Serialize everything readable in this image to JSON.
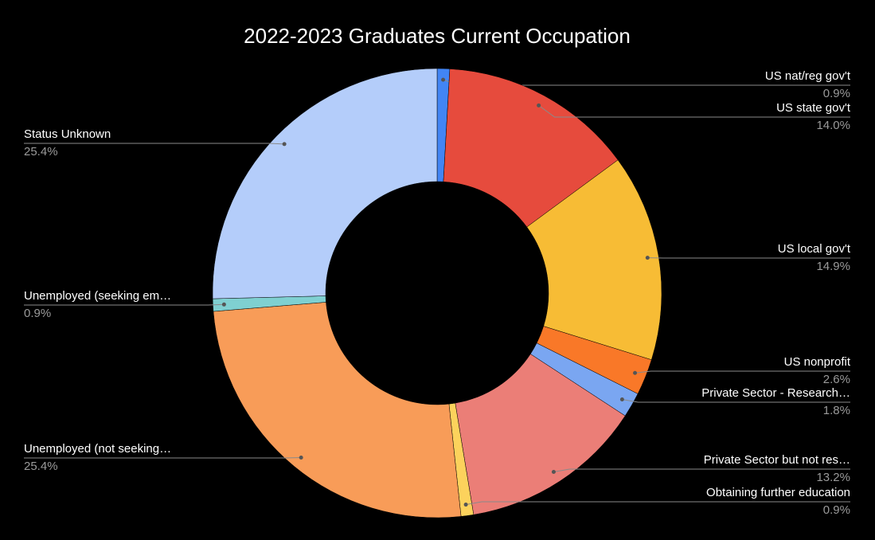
{
  "chart_data": {
    "type": "donut",
    "title": "2022-2023 Graduates Current Occupation",
    "categories": [
      "US nat/reg gov't",
      "US state gov't",
      "US local gov't",
      "US nonprofit",
      "Private Sector - Research…",
      "Private Sector but not res…",
      "Obtaining further education",
      "Unemployed (not seeking…",
      "Unemployed (seeking em…",
      "Status Unknown"
    ],
    "values": [
      0.9,
      14.0,
      14.9,
      2.6,
      1.8,
      13.2,
      0.9,
      25.4,
      0.9,
      25.4
    ],
    "value_labels": [
      "0.9%",
      "14.0%",
      "14.9%",
      "2.6%",
      "1.8%",
      "13.2%",
      "0.9%",
      "25.4%",
      "0.9%",
      "25.4%"
    ],
    "colors": [
      "#4285f4",
      "#e64b3d",
      "#f7bc35",
      "#f97828",
      "#7aa6f1",
      "#eb7e77",
      "#fcd25c",
      "#f89c58",
      "#7fd0d1",
      "#b4cdfa"
    ]
  }
}
